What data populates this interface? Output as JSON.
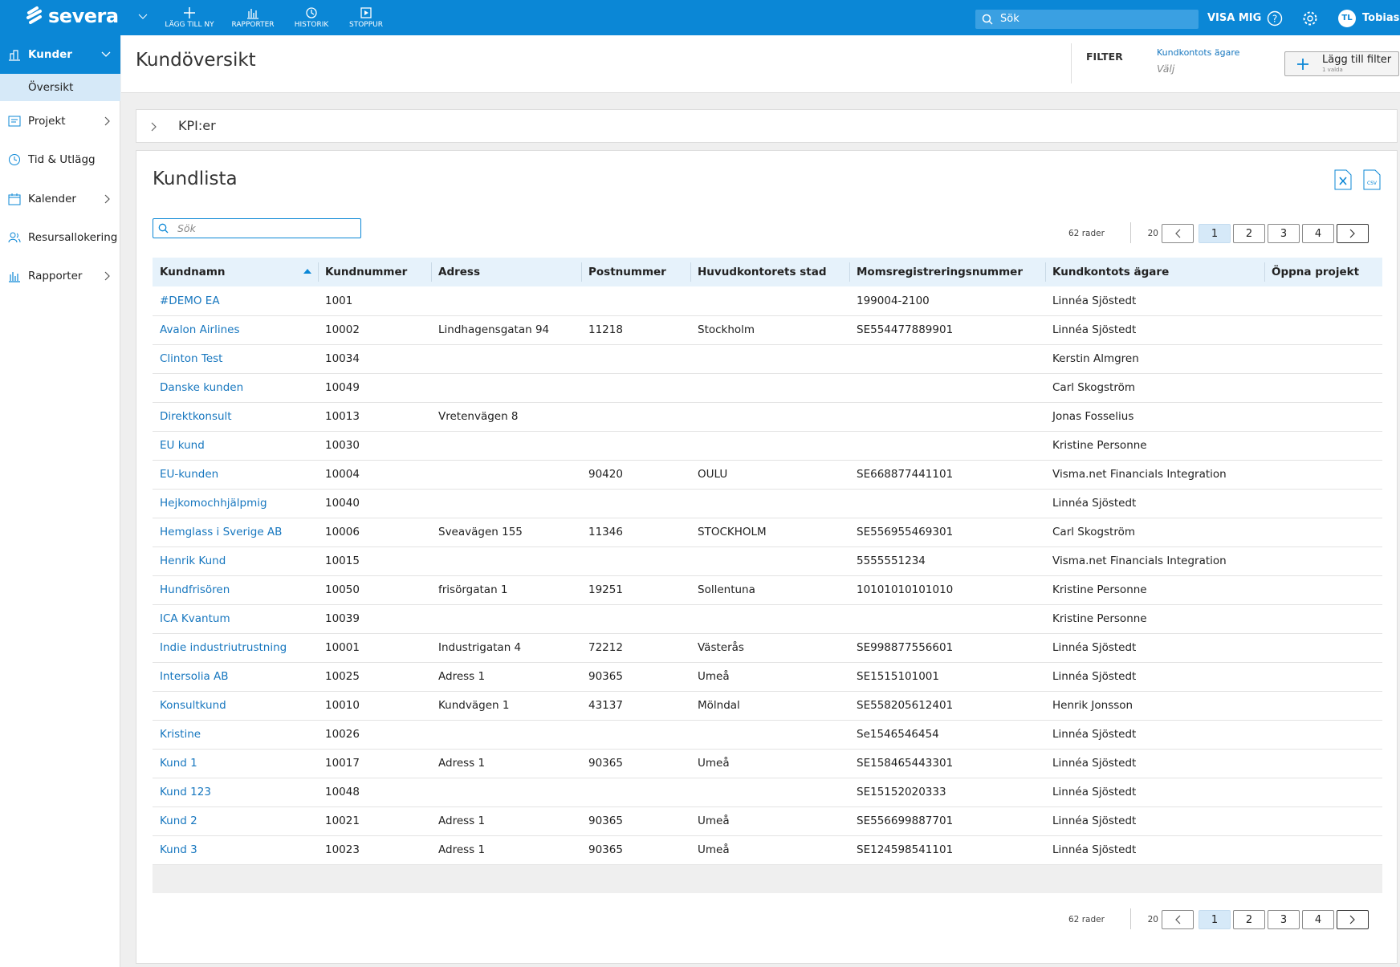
{
  "topbar": {
    "logo": "severa",
    "nav": [
      "LÄGG TILL NY",
      "RAPPORTER",
      "HISTORIK",
      "STOPPUR"
    ],
    "search_placeholder": "Sök",
    "visa_mig": "VISA MIG",
    "user_initials": "TL",
    "user_name": "Tobias"
  },
  "sidebar": {
    "items": [
      "Kunder",
      "Projekt",
      "Tid & Utlägg",
      "Kalender",
      "Resursallokering",
      "Rapporter"
    ],
    "subitem": "Översikt"
  },
  "header": {
    "title": "Kundöversikt",
    "filter_label": "FILTER",
    "filter_field": "Kundkontots ägare",
    "filter_value": "Välj",
    "add_filter": "Lägg till filter",
    "add_filter_sub": "1 valda"
  },
  "kpi": {
    "title": "KPI:er"
  },
  "customer_list": {
    "title": "Kundlista",
    "csv_icon": "CSV",
    "search_placeholder": "Sök",
    "row_count": "62 rader",
    "page_size": "20",
    "pages": [
      "1",
      "2",
      "3",
      "4"
    ],
    "columns": [
      "Kundnamn",
      "Kundnummer",
      "Adress",
      "Postnummer",
      "Huvudkontorets stad",
      "Momsregistreringsnummer",
      "Kundkontots ägare",
      "Öppna projekt"
    ],
    "rows": [
      [
        "#DEMO EA",
        "1001",
        null,
        null,
        null,
        "199004-2100",
        "Linnéa Sjöstedt",
        null
      ],
      [
        "Avalon Airlines",
        "10002",
        "Lindhagensgatan 94",
        "11218",
        "Stockholm",
        "SE554477889901",
        "Linnéa Sjöstedt",
        null
      ],
      [
        "Clinton Test",
        "10034",
        null,
        null,
        null,
        null,
        "Kerstin Almgren",
        null
      ],
      [
        "Danske kunden",
        "10049",
        null,
        null,
        null,
        null,
        "Carl Skogström",
        null
      ],
      [
        "Direktkonsult",
        "10013",
        "Vretenvägen 8",
        null,
        null,
        null,
        "Jonas Fosselius",
        null
      ],
      [
        "EU kund",
        "10030",
        null,
        null,
        null,
        null,
        "Kristine Personne",
        null
      ],
      [
        "EU-kunden",
        "10004",
        null,
        "90420",
        "OULU",
        "SE668877441101",
        "Visma.net Financials Integration",
        null
      ],
      [
        "Hejkomochhjälpmig",
        "10040",
        null,
        null,
        null,
        null,
        "Linnéa Sjöstedt",
        null
      ],
      [
        "Hemglass i Sverige AB",
        "10006",
        "Sveavägen 155",
        "11346",
        "STOCKHOLM",
        "SE556955469301",
        "Carl Skogström",
        null
      ],
      [
        "Henrik Kund",
        "10015",
        null,
        null,
        null,
        "5555551234",
        "Visma.net Financials Integration",
        null
      ],
      [
        "Hundfrisören",
        "10050",
        "frisörgatan 1",
        "19251",
        "Sollentuna",
        "10101010101010",
        "Kristine Personne",
        null
      ],
      [
        "ICA Kvantum",
        "10039",
        null,
        null,
        null,
        null,
        "Kristine Personne",
        null
      ],
      [
        "Indie industriutrustning",
        "10001",
        "Industrigatan 4",
        "72212",
        "Västerås",
        "SE998877556601",
        "Linnéa Sjöstedt",
        null
      ],
      [
        "Intersolia AB",
        "10025",
        "Adress 1",
        "90365",
        "Umeå",
        "SE1515101001",
        "Linnéa Sjöstedt",
        null
      ],
      [
        "Konsultkund",
        "10010",
        "Kundvägen 1",
        "43137",
        "Mölndal",
        "SE558205612401",
        "Henrik Jonsson",
        null
      ],
      [
        "Kristine",
        "10026",
        null,
        null,
        null,
        "Se1546546454",
        "Linnéa Sjöstedt",
        null
      ],
      [
        "Kund 1",
        "10017",
        "Adress 1",
        "90365",
        "Umeå",
        "SE158465443301",
        "Linnéa Sjöstedt",
        null
      ],
      [
        "Kund 123",
        "10048",
        null,
        null,
        null,
        "SE15152020333",
        "Linnéa Sjöstedt",
        null
      ],
      [
        "Kund 2",
        "10021",
        "Adress 1",
        "90365",
        "Umeå",
        "SE556699887701",
        "Linnéa Sjöstedt",
        null
      ],
      [
        "Kund 3",
        "10023",
        "Adress 1",
        "90365",
        "Umeå",
        "SE124598541101",
        "Linnéa Sjöstedt",
        null
      ]
    ]
  }
}
